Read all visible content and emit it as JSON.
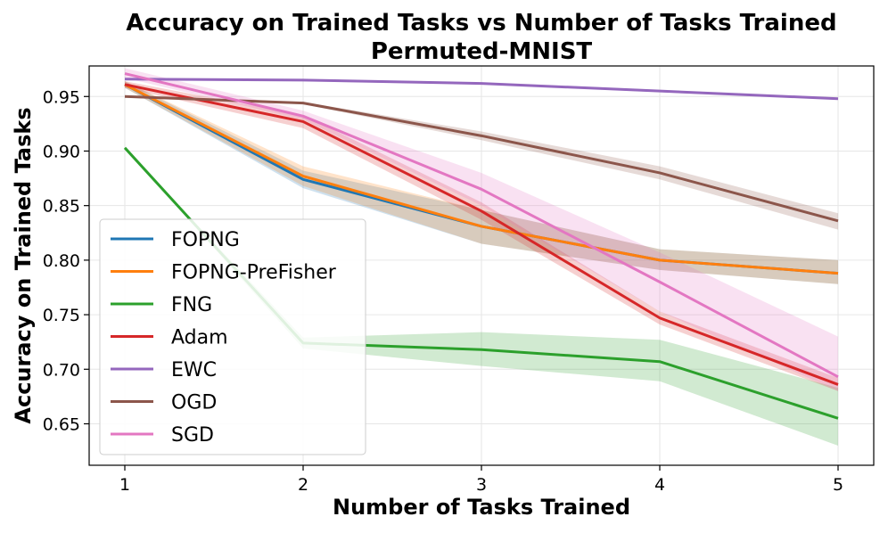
{
  "chart_data": {
    "type": "line",
    "title": "Accuracy on Trained Tasks vs Number of Tasks Trained",
    "subtitle": "Permuted-MNIST",
    "xlabel": "Number of Tasks Trained",
    "ylabel": "Accuracy on Trained Tasks",
    "x": [
      1,
      2,
      3,
      4,
      5
    ],
    "xticks": [
      "1",
      "2",
      "3",
      "4",
      "5"
    ],
    "xlim": [
      0.8,
      5.2
    ],
    "ylim": [
      0.612,
      0.978
    ],
    "yticks": [
      "0.65",
      "0.70",
      "0.75",
      "0.80",
      "0.85",
      "0.90",
      "0.95"
    ],
    "ytick_values": [
      0.65,
      0.7,
      0.75,
      0.8,
      0.85,
      0.9,
      0.95
    ],
    "grid": true,
    "legend_position": "lower-left",
    "series": [
      {
        "name": "FOPNG",
        "color": "#1f77b4",
        "values": [
          0.961,
          0.874,
          0.831,
          0.8,
          0.788
        ],
        "lower": [
          0.958,
          0.866,
          0.815,
          0.791,
          0.778
        ],
        "upper": [
          0.964,
          0.882,
          0.846,
          0.81,
          0.8
        ]
      },
      {
        "name": "FOPNG-PreFisher",
        "color": "#ff7f0e",
        "values": [
          0.961,
          0.877,
          0.831,
          0.8,
          0.788
        ],
        "lower": [
          0.958,
          0.868,
          0.815,
          0.791,
          0.778
        ],
        "upper": [
          0.964,
          0.886,
          0.846,
          0.81,
          0.8
        ]
      },
      {
        "name": "FNG",
        "color": "#2ca02c",
        "values": [
          0.903,
          0.724,
          0.718,
          0.707,
          0.655
        ],
        "lower": [
          0.903,
          0.719,
          0.703,
          0.689,
          0.63
        ],
        "upper": [
          0.903,
          0.729,
          0.734,
          0.727,
          0.683
        ]
      },
      {
        "name": "Adam",
        "color": "#d62728",
        "values": [
          0.961,
          0.927,
          0.845,
          0.747,
          0.686
        ],
        "lower": [
          0.958,
          0.921,
          0.837,
          0.741,
          0.68
        ],
        "upper": [
          0.964,
          0.933,
          0.853,
          0.753,
          0.692
        ]
      },
      {
        "name": "EWC",
        "color": "#9467bd",
        "values": [
          0.966,
          0.965,
          0.962,
          0.955,
          0.948
        ],
        "lower": [
          0.965,
          0.964,
          0.961,
          0.954,
          0.947
        ],
        "upper": [
          0.967,
          0.966,
          0.963,
          0.956,
          0.949
        ]
      },
      {
        "name": "OGD",
        "color": "#8c564b",
        "values": [
          0.95,
          0.944,
          0.914,
          0.88,
          0.836
        ],
        "lower": [
          0.949,
          0.943,
          0.91,
          0.874,
          0.828
        ],
        "upper": [
          0.951,
          0.945,
          0.918,
          0.886,
          0.843
        ]
      },
      {
        "name": "SGD",
        "color": "#e377c2",
        "values": [
          0.971,
          0.932,
          0.865,
          0.78,
          0.693
        ],
        "lower": [
          0.967,
          0.929,
          0.85,
          0.753,
          0.68
        ],
        "upper": [
          0.976,
          0.937,
          0.88,
          0.807,
          0.73
        ]
      }
    ]
  }
}
